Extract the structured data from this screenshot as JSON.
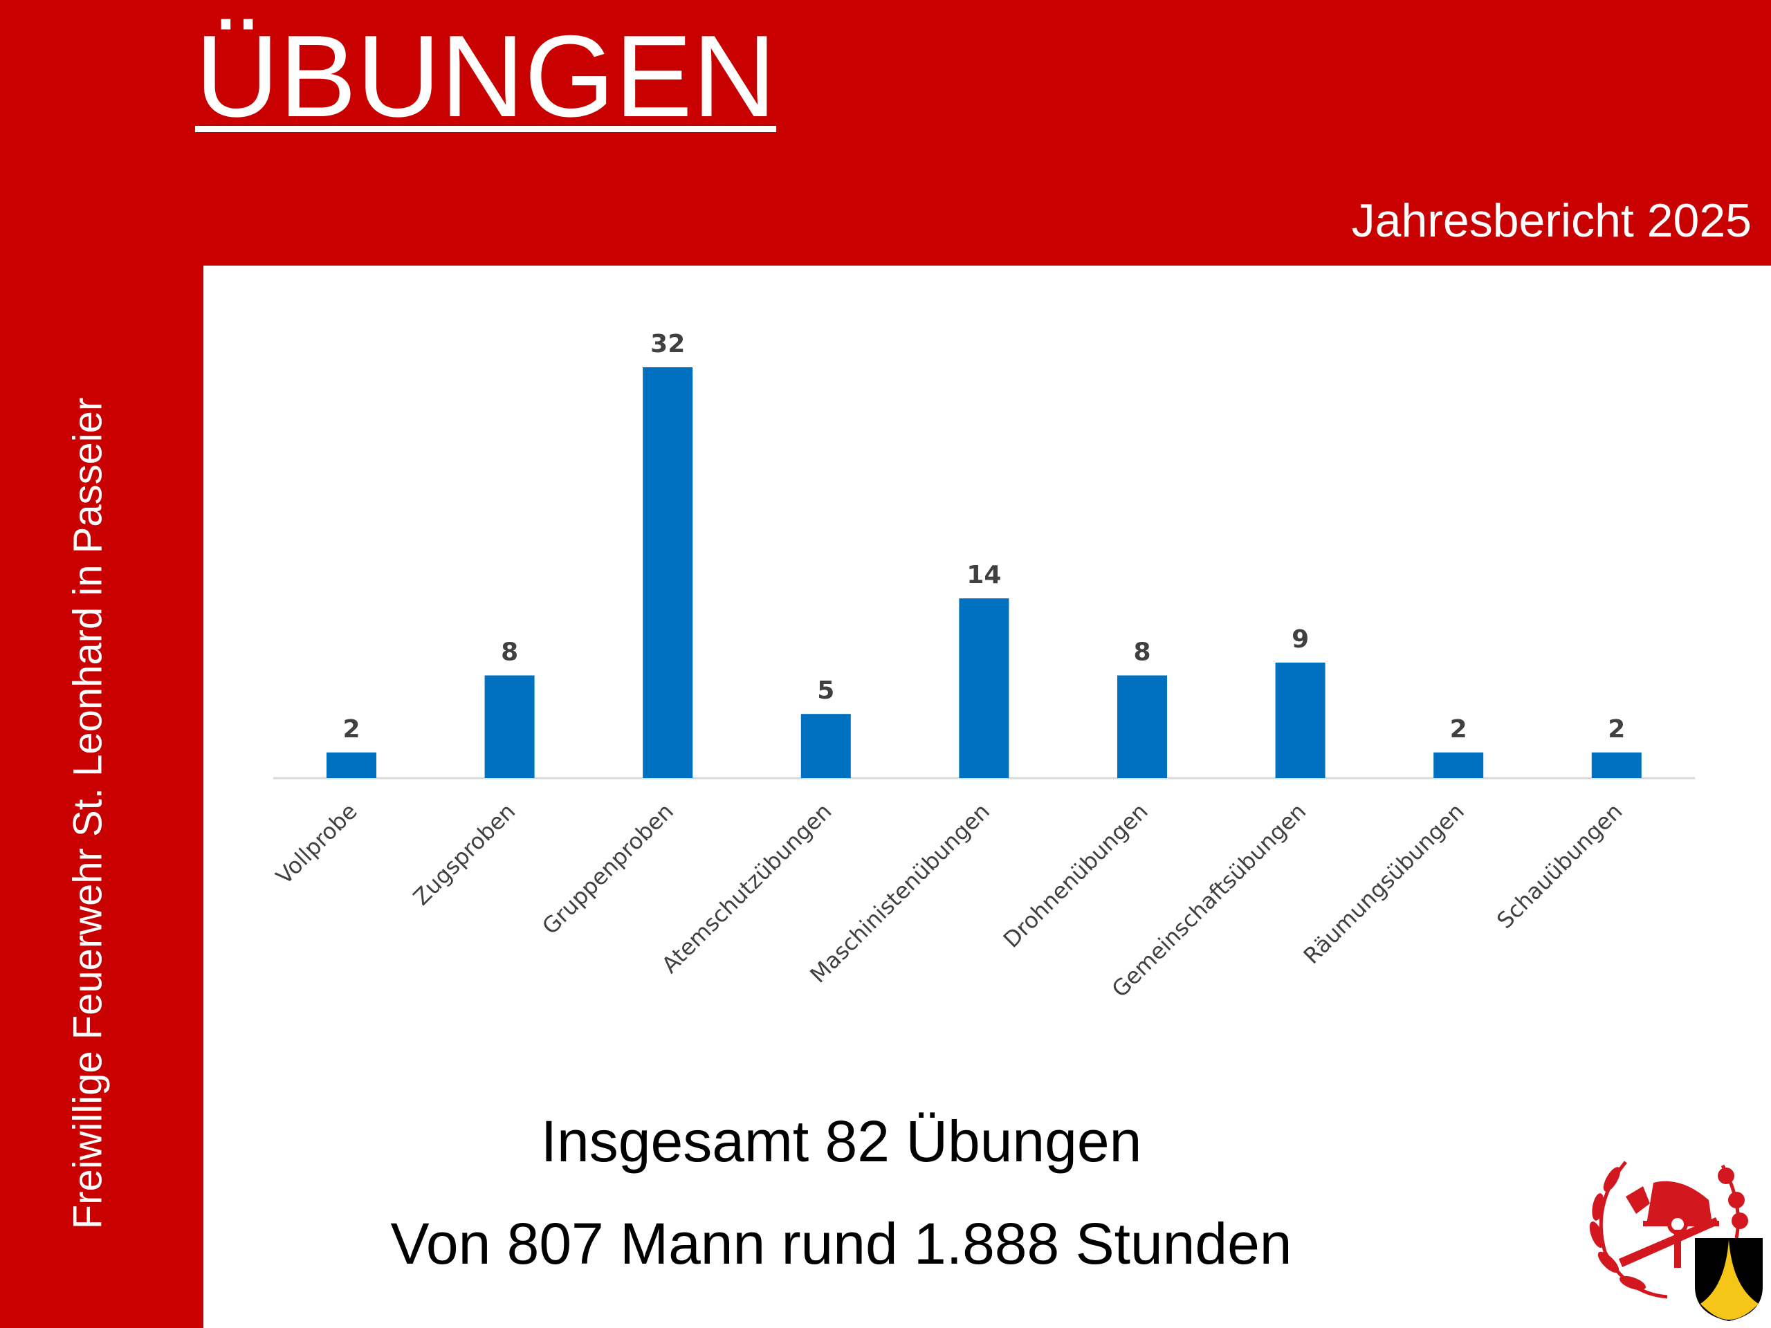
{
  "header": {
    "title": "ÜBUNGEN",
    "subtitle": "Jahresbericht 2025"
  },
  "sidebar": {
    "organization": "Freiwillige Feuerwehr St. Leonhard in Passeier"
  },
  "summary": {
    "line1": "Insgesamt 82 Übungen",
    "line2": "Von 807 Mann rund 1.888 Stunden"
  },
  "colors": {
    "background": "#C80000",
    "bar": "#0070C0",
    "axis": "#D9D9D9"
  },
  "chart_data": {
    "type": "bar",
    "title": "",
    "xlabel": "",
    "ylabel": "",
    "categories": [
      "Vollprobe",
      "Zugsproben",
      "Gruppenproben",
      "Atemschutzübungen",
      "Maschinistenübungen",
      "Drohnenübungen",
      "Gemeinschaftsübungen",
      "Räumungsübungen",
      "Schauübungen"
    ],
    "values": [
      2,
      8,
      32,
      5,
      14,
      8,
      9,
      2,
      2
    ],
    "ylim": [
      0,
      32
    ],
    "grid": false,
    "data_labels": true
  },
  "logo": {
    "name": "Feuerwehr emblem with coat of arms"
  }
}
